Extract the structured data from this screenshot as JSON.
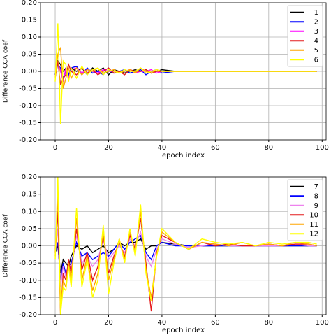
{
  "chart_data": [
    {
      "type": "line",
      "xlabel": "epoch index",
      "ylabel": "Difference CCA coef",
      "x": [
        0,
        1,
        2,
        3,
        4,
        5,
        6,
        8,
        10,
        12,
        14,
        16,
        18,
        20,
        22,
        24,
        26,
        28,
        30,
        32,
        34,
        36,
        38,
        40,
        45,
        50,
        55,
        60,
        65,
        70,
        75,
        80,
        85,
        90,
        95,
        98
      ],
      "xlim": [
        -5.5,
        101.5
      ],
      "xticks": [
        0,
        20,
        40,
        60,
        80,
        100
      ],
      "ylim": [
        -0.2,
        0.2
      ],
      "yticks": [
        {
          "value": -0.2,
          "label": "-0.20"
        },
        -0.15,
        {
          "value": -0.1,
          "label": "-0.10"
        },
        -0.05,
        {
          "value": 0,
          "label": "0.00"
        },
        0.05,
        {
          "value": 0.1,
          "label": "0.10"
        },
        0.15,
        {
          "value": 0.2,
          "label": "0.20"
        }
      ],
      "grid": true,
      "legend": "upper right",
      "series": [
        {
          "name": "1",
          "color": "#000000",
          "values": [
            -0.01,
            0.03,
            0.02,
            0.0,
            0.01,
            -0.01,
            0.01,
            0.0,
            0.01,
            -0.01,
            0.01,
            0.0,
            0.01,
            -0.01,
            0.005,
            0.0,
            -0.005,
            0.0,
            0.005,
            0.0,
            0.005,
            -0.005,
            0.0,
            0.005,
            0.0,
            0.0,
            0.0,
            0.0,
            0.0,
            0.0,
            0.0,
            0.0,
            0.0,
            0.0,
            0.0,
            0.0
          ]
        },
        {
          "name": "2",
          "color": "#0000ff",
          "values": [
            -0.01,
            0.02,
            0.01,
            -0.02,
            0.0,
            -0.01,
            0.01,
            0.015,
            -0.01,
            0.01,
            -0.005,
            0.0,
            -0.01,
            0.005,
            -0.005,
            0.0,
            0.005,
            -0.005,
            0.0,
            0.005,
            -0.01,
            0.0,
            0.005,
            -0.005,
            0.0,
            0.0,
            0.0,
            0.0,
            0.0,
            0.0,
            0.0,
            0.0,
            0.0,
            0.0,
            0.0,
            0.0
          ]
        },
        {
          "name": "3",
          "color": "#ff00ff",
          "values": [
            -0.015,
            0.025,
            0.0,
            -0.03,
            0.01,
            -0.02,
            0.005,
            0.01,
            -0.005,
            0.005,
            0.0,
            -0.005,
            0.005,
            0.0,
            0.0,
            -0.005,
            0.0,
            0.005,
            -0.005,
            0.0,
            0.0,
            0.005,
            -0.005,
            0.0,
            0.0,
            0.0,
            0.0,
            0.0,
            0.0,
            0.0,
            0.0,
            0.0,
            0.0,
            0.0,
            0.0,
            0.0
          ]
        },
        {
          "name": "4",
          "color": "#e41a1c",
          "values": [
            -0.02,
            0.03,
            -0.04,
            -0.02,
            -0.01,
            0.02,
            0.0,
            -0.01,
            0.01,
            -0.005,
            0.005,
            -0.01,
            0.0,
            0.01,
            -0.005,
            0.0,
            -0.01,
            0.005,
            0.0,
            0.0,
            0.005,
            -0.005,
            0.0,
            0.0,
            0.0,
            0.0,
            0.0,
            0.0,
            0.0,
            0.0,
            0.0,
            0.0,
            0.0,
            0.0,
            0.0,
            0.0
          ]
        },
        {
          "name": "5",
          "color": "#ffa500",
          "values": [
            -0.02,
            0.05,
            0.07,
            -0.05,
            -0.02,
            0.01,
            -0.02,
            0.01,
            -0.01,
            0.005,
            0.0,
            0.01,
            -0.005,
            0.0,
            0.005,
            -0.005,
            0.0,
            0.005,
            -0.005,
            0.01,
            0.0,
            -0.005,
            0.005,
            0.0,
            0.0,
            0.0,
            0.0,
            0.0,
            0.0,
            0.0,
            0.0,
            0.0,
            0.0,
            0.0,
            0.0,
            0.0
          ]
        },
        {
          "name": "6",
          "color": "#ffff00",
          "values": [
            -0.03,
            0.14,
            -0.155,
            0.03,
            0.02,
            -0.03,
            0.01,
            -0.02,
            0.015,
            -0.01,
            0.005,
            0.01,
            -0.01,
            0.005,
            0.0,
            -0.005,
            0.005,
            0.0,
            0.0,
            0.01,
            -0.005,
            0.0,
            0.005,
            0.0,
            0.0,
            0.0,
            0.0,
            0.0,
            0.0,
            0.0,
            0.0,
            0.0,
            0.0,
            0.0,
            0.0,
            0.0
          ]
        }
      ]
    },
    {
      "type": "line",
      "xlabel": "epoch index",
      "ylabel": "Difference CCA coef",
      "x": [
        0,
        1,
        2,
        3,
        4,
        5,
        6,
        8,
        10,
        12,
        14,
        16,
        18,
        20,
        22,
        24,
        26,
        28,
        30,
        32,
        34,
        36,
        38,
        40,
        45,
        50,
        55,
        60,
        65,
        70,
        75,
        80,
        85,
        90,
        95,
        98
      ],
      "xlim": [
        -5.5,
        101.5
      ],
      "xticks": [
        0,
        20,
        40,
        60,
        80,
        100
      ],
      "ylim": [
        -0.2,
        0.2
      ],
      "yticks": [
        {
          "value": -0.2,
          "label": "-0.20"
        },
        -0.15,
        {
          "value": -0.1,
          "label": "-0.10"
        },
        -0.05,
        {
          "value": 0,
          "label": "0.00"
        },
        0.05,
        {
          "value": 0.1,
          "label": "0.10"
        },
        0.15,
        {
          "value": 0.2,
          "label": "0.20"
        }
      ],
      "grid": true,
      "legend": "upper right",
      "series": [
        {
          "name": "7",
          "color": "#000000",
          "values": [
            -0.02,
            0.0,
            -0.08,
            -0.04,
            -0.05,
            -0.06,
            -0.03,
            0.0,
            -0.01,
            0.0,
            -0.02,
            -0.01,
            0.0,
            -0.02,
            -0.01,
            0.01,
            0.0,
            0.01,
            0.01,
            0.02,
            -0.01,
            0.0,
            0.0,
            0.01,
            0.005,
            0.0,
            0.0,
            0.0,
            0.0,
            0.0,
            0.0,
            0.0,
            0.0,
            0.0,
            0.0,
            0.0
          ]
        },
        {
          "name": "8",
          "color": "#0000ff",
          "values": [
            -0.02,
            0.01,
            -0.1,
            -0.05,
            -0.08,
            -0.06,
            -0.05,
            0.01,
            -0.03,
            -0.02,
            -0.04,
            -0.03,
            -0.02,
            -0.03,
            -0.01,
            0.01,
            -0.01,
            0.01,
            0.02,
            0.03,
            -0.02,
            -0.04,
            0.0,
            0.01,
            0.0,
            0.0,
            0.0,
            0.0,
            0.0,
            0.0,
            0.0,
            0.0,
            0.0,
            0.0,
            0.0,
            0.0
          ]
        },
        {
          "name": "9",
          "color": "#ee82ee",
          "values": [
            -0.02,
            0.05,
            -0.12,
            -0.06,
            -0.09,
            -0.05,
            -0.07,
            0.03,
            -0.05,
            -0.03,
            -0.06,
            -0.04,
            0.02,
            -0.04,
            -0.02,
            0.0,
            -0.02,
            0.02,
            0.0,
            0.04,
            -0.03,
            -0.06,
            -0.01,
            0.02,
            0.005,
            -0.005,
            0.0,
            0.005,
            0.0,
            0.0,
            0.0,
            0.0,
            0.0,
            0.005,
            0.0,
            0.0
          ]
        },
        {
          "name": "10",
          "color": "#e41a1c",
          "values": [
            -0.02,
            0.1,
            -0.2,
            -0.08,
            -0.1,
            -0.04,
            -0.08,
            0.05,
            -0.07,
            -0.02,
            -0.1,
            -0.06,
            0.03,
            -0.08,
            -0.03,
            0.01,
            -0.03,
            0.03,
            -0.01,
            0.08,
            -0.05,
            -0.19,
            -0.02,
            0.03,
            0.01,
            -0.01,
            0.01,
            0.0,
            0.005,
            0.0,
            0.0,
            0.005,
            0.0,
            0.005,
            0.005,
            0.0
          ]
        },
        {
          "name": "11",
          "color": "#ffa500",
          "values": [
            -0.03,
            0.15,
            -0.18,
            -0.1,
            -0.12,
            -0.05,
            -0.1,
            0.08,
            -0.1,
            -0.03,
            -0.13,
            -0.08,
            0.05,
            -0.1,
            -0.04,
            0.02,
            -0.04,
            0.04,
            -0.02,
            0.1,
            -0.07,
            -0.15,
            -0.03,
            0.04,
            0.01,
            -0.01,
            0.01,
            0.005,
            0.0,
            0.01,
            0.0,
            0.005,
            0.0,
            0.01,
            0.005,
            0.0
          ]
        },
        {
          "name": "12",
          "color": "#ffff00",
          "values": [
            -0.04,
            0.2,
            -0.2,
            -0.12,
            -0.13,
            -0.06,
            -0.12,
            0.11,
            -0.12,
            -0.04,
            -0.15,
            -0.1,
            0.06,
            -0.14,
            -0.05,
            0.02,
            -0.05,
            0.05,
            -0.03,
            0.12,
            -0.08,
            -0.16,
            -0.03,
            0.05,
            0.01,
            -0.01,
            0.02,
            0.01,
            0.005,
            0.01,
            0.0,
            0.01,
            0.005,
            0.01,
            0.01,
            0.005
          ]
        }
      ]
    }
  ]
}
